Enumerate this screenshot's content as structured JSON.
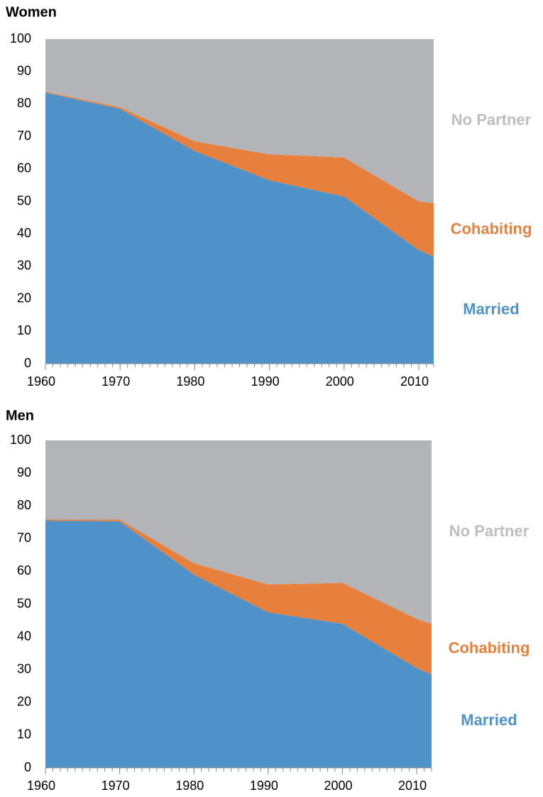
{
  "chart_data": [
    {
      "type": "area",
      "title": "Women",
      "x": [
        1960,
        1970,
        1980,
        1990,
        2000,
        2010,
        2012
      ],
      "series": [
        {
          "name": "Married",
          "color": "#4f92c9",
          "label_color": "#4f92c9",
          "values": [
            83.5,
            78.5,
            65.5,
            56.5,
            51.5,
            35,
            33
          ]
        },
        {
          "name": "Cohabiting",
          "color": "#e8803d",
          "label_color": "#e8803d",
          "values": [
            0.3,
            0.5,
            3,
            8,
            12,
            15,
            16.5
          ]
        },
        {
          "name": "No Partner",
          "color": "#b3b4b8",
          "label_color": "#bdbec1",
          "values": [
            16.2,
            21,
            31.5,
            35.5,
            36.5,
            50,
            50.5
          ]
        }
      ],
      "xlim": [
        1960,
        2012
      ],
      "ylim": [
        0,
        100
      ],
      "xticks": [
        1960,
        1970,
        1980,
        1990,
        2000,
        2010
      ],
      "yticks": [
        0,
        10,
        20,
        30,
        40,
        50,
        60,
        70,
        80,
        90,
        100
      ]
    },
    {
      "type": "area",
      "title": "Men",
      "x": [
        1960,
        1970,
        1980,
        1990,
        2000,
        2010,
        2012
      ],
      "series": [
        {
          "name": "Married",
          "color": "#4f92c9",
          "label_color": "#4f92c9",
          "values": [
            75.5,
            75.3,
            59,
            47.5,
            44,
            30.5,
            28.5
          ]
        },
        {
          "name": "Cohabiting",
          "color": "#e8803d",
          "label_color": "#e8803d",
          "values": [
            0.3,
            0.5,
            3.5,
            8.5,
            12.5,
            15,
            15.5
          ]
        },
        {
          "name": "No Partner",
          "color": "#b3b4b8",
          "label_color": "#bdbec1",
          "values": [
            24.2,
            24.2,
            37.5,
            44,
            43.5,
            54.5,
            56
          ]
        }
      ],
      "xlim": [
        1960,
        2012
      ],
      "ylim": [
        0,
        100
      ],
      "xticks": [
        1960,
        1970,
        1980,
        1990,
        2000,
        2010
      ],
      "yticks": [
        0,
        10,
        20,
        30,
        40,
        50,
        60,
        70,
        80,
        90,
        100
      ]
    }
  ]
}
